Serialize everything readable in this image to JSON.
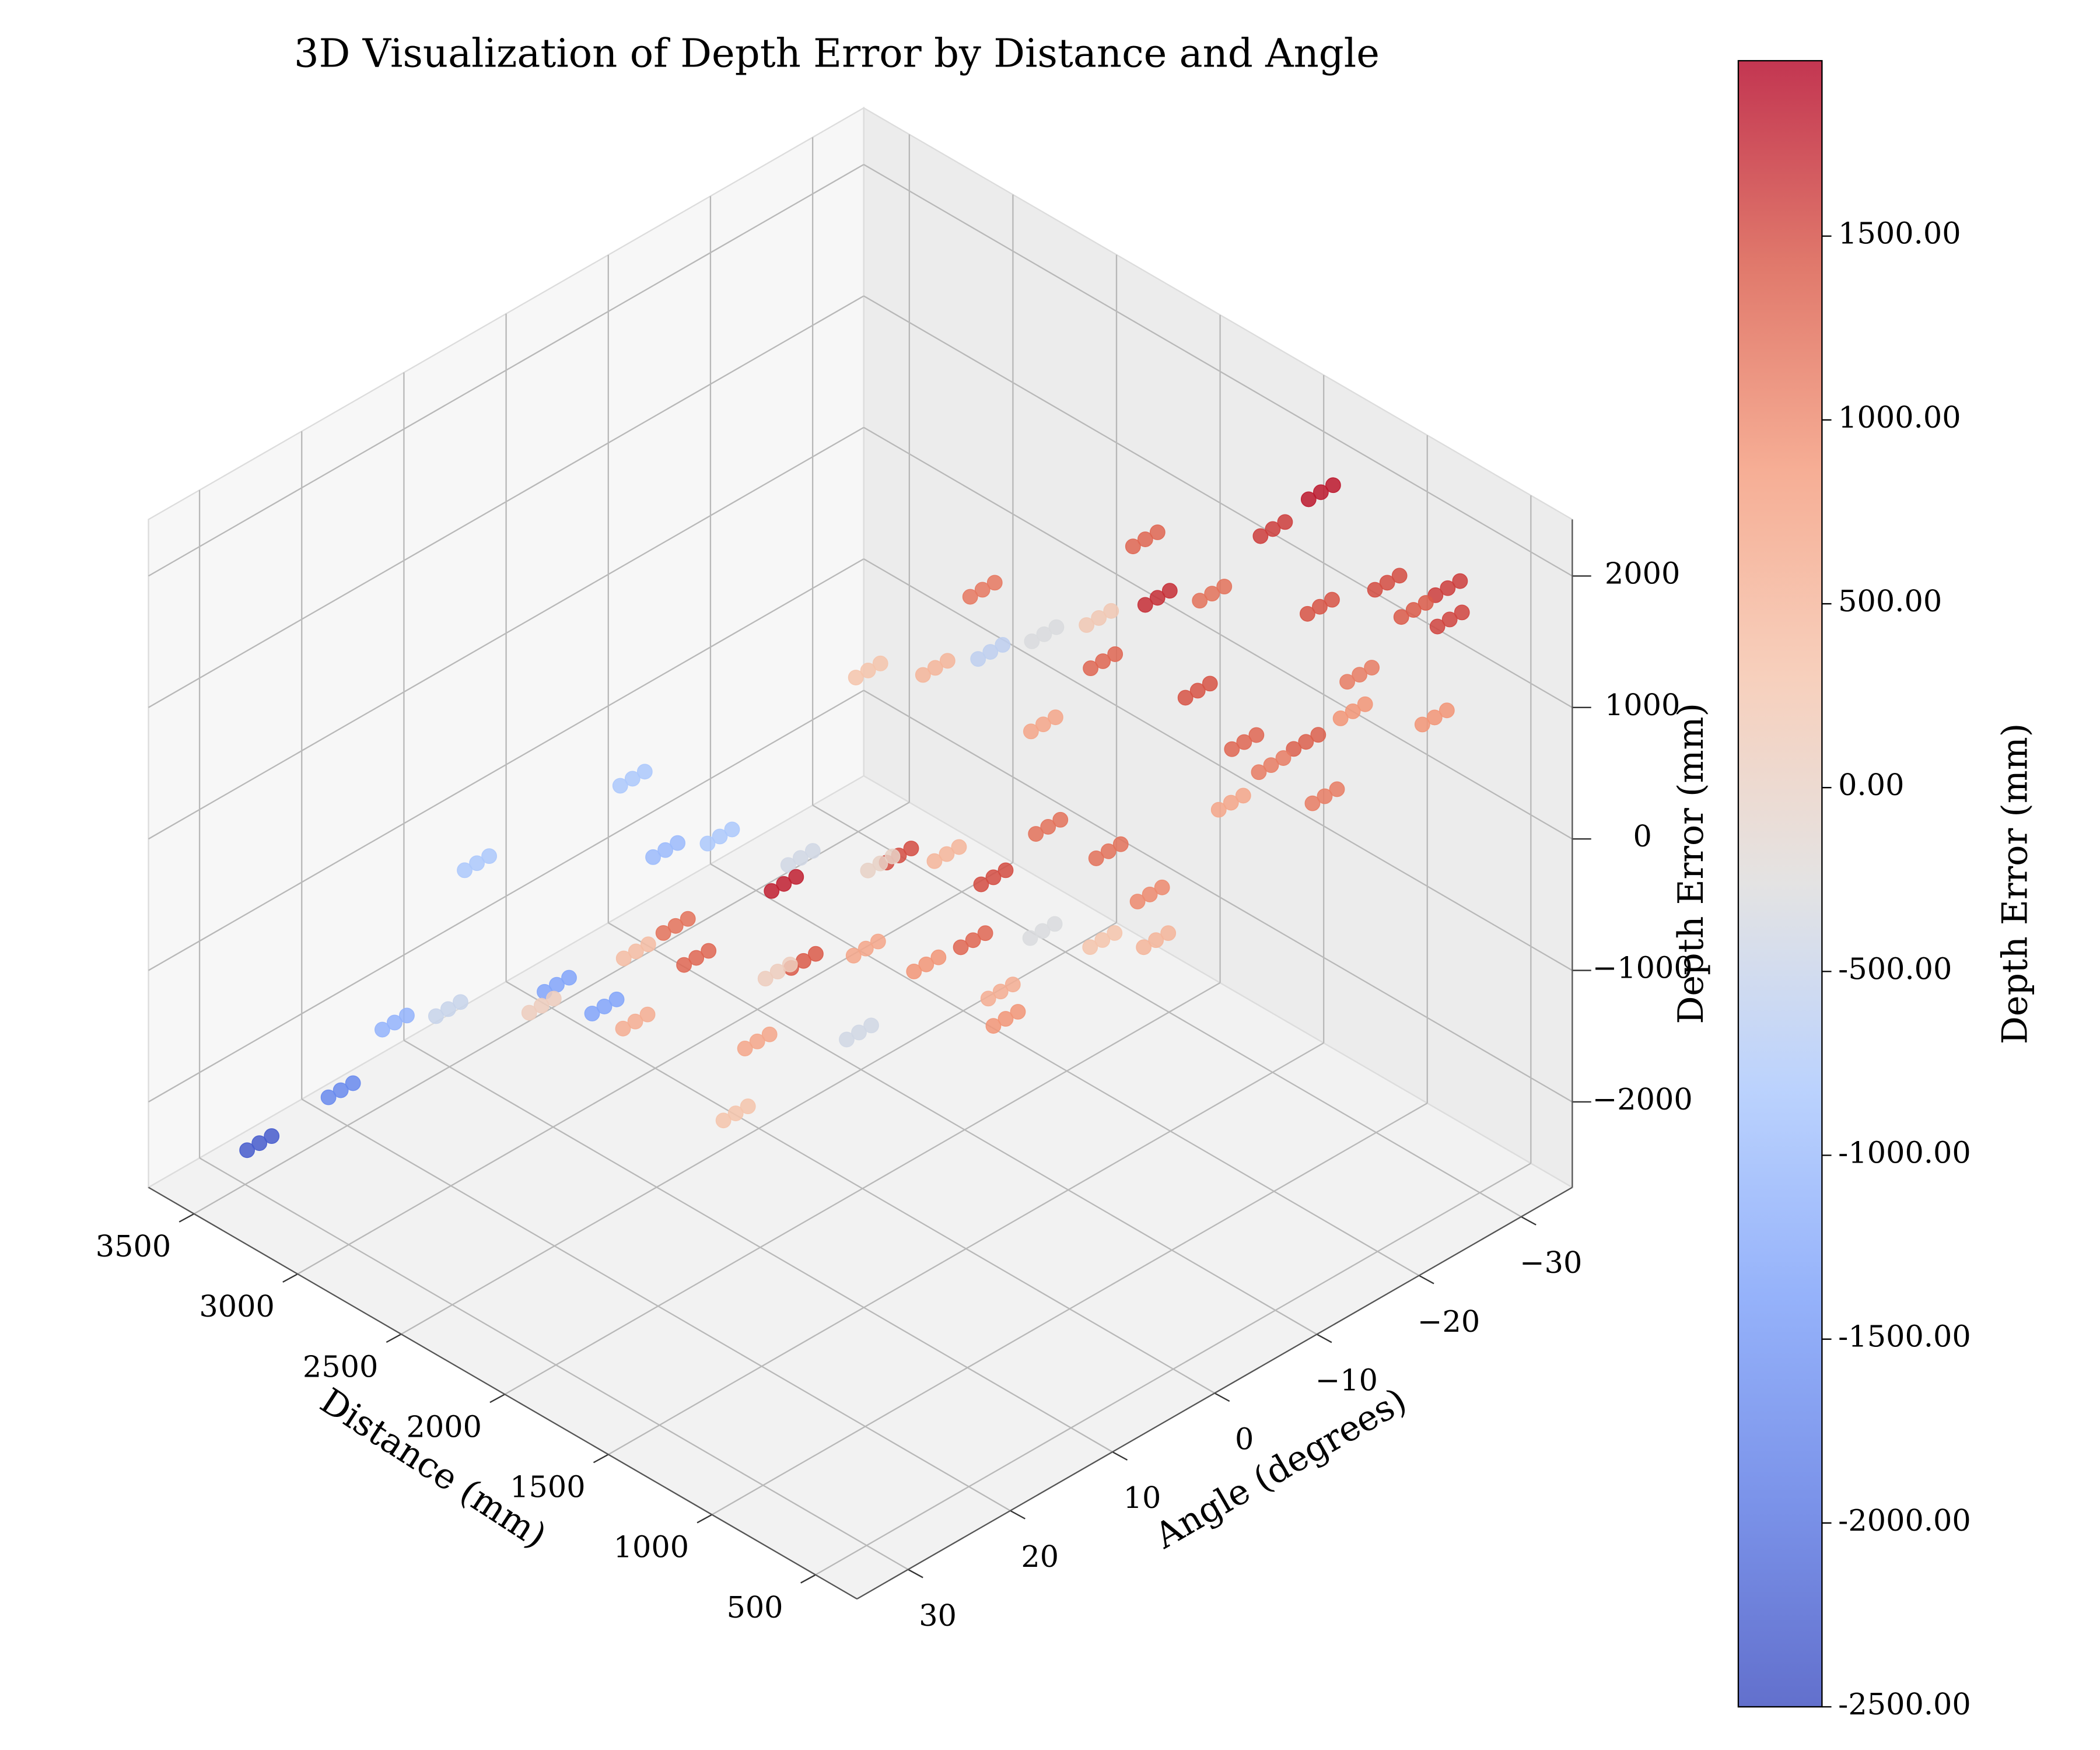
{
  "chart_data": {
    "type": "scatter3d",
    "title": "3D Visualization of Depth Error by Distance and Angle",
    "xlabel": "Distance (mm)",
    "ylabel": "Angle (degrees)",
    "zlabel": "Depth Error (mm)",
    "colorbar_label": "Depth Error (mm)",
    "colormap": "coolwarm",
    "grid": true,
    "xlim": [
      300,
      3720
    ],
    "ylim": [
      -35,
      35
    ],
    "zlim": [
      -2650,
      2430
    ],
    "clim": [
      -2500,
      1977
    ],
    "xticks": [
      500,
      1000,
      1500,
      2000,
      2500,
      3000,
      3500
    ],
    "yticks": [
      {
        "value": -30,
        "label": "−30"
      },
      {
        "value": -20,
        "label": "−20"
      },
      {
        "value": -10,
        "label": "−10"
      },
      0,
      10,
      20,
      30
    ],
    "zticks": [
      {
        "value": -2000,
        "label": "−2000"
      },
      {
        "value": -1000,
        "label": "−1000"
      },
      0,
      1000,
      2000
    ],
    "colorbar_ticks": [
      {
        "value": -2500,
        "label": "-2500.00"
      },
      {
        "value": -2000,
        "label": "-2000.00"
      },
      {
        "value": -1500,
        "label": "-1500.00"
      },
      {
        "value": -1000,
        "label": "-1000.00"
      },
      {
        "value": -500,
        "label": "-500.00"
      },
      {
        "value": 0,
        "label": "0.00"
      },
      {
        "value": 500,
        "label": "500.00"
      },
      {
        "value": 1000,
        "label": "1000.00"
      },
      {
        "value": 1500,
        "label": "1500.00"
      }
    ],
    "x": [
      1336,
      1336,
      1336,
      1435,
      1435,
      1435,
      1863,
      1863,
      1863,
      2126,
      2126,
      2126,
      1370,
      1370,
      1370,
      1531,
      1531,
      1531,
      991,
      991,
      991,
      768,
      768,
      768,
      869,
      869,
      869,
      1080,
      1080,
      1080,
      660,
      660,
      660,
      2588,
      2588,
      2588,
      2808,
      2808,
      2808,
      2250,
      2250,
      2250,
      2530,
      2530,
      2530,
      2270,
      2270,
      2270,
      1456,
      1456,
      1456,
      1023,
      1023,
      1023,
      893,
      893,
      893,
      866,
      866,
      866,
      644,
      644,
      644,
      1665,
      1665,
      1665,
      779,
      779,
      779,
      604,
      604,
      604,
      728,
      728,
      728,
      887,
      887,
      887,
      469,
      469,
      469,
      3248,
      3248,
      3248,
      3269,
      3269,
      3269,
      2981,
      2981,
      2981,
      2797,
      2797,
      2797,
      2294,
      2294,
      2294,
      1025,
      1025,
      1025,
      1465,
      1465,
      1465,
      1018,
      1018,
      1018,
      707,
      707,
      707,
      951,
      951,
      951,
      704,
      704,
      704,
      534,
      534,
      534,
      1432,
      1432,
      1432,
      1194,
      1194,
      1194,
      1860,
      1860,
      1860,
      2844,
      2844,
      2844,
      2564,
      2564,
      2564,
      2966,
      2966,
      2966,
      2639,
      2639,
      2639,
      1459,
      1459,
      1459,
      2025,
      2025,
      2025,
      3142,
      3142,
      3142,
      3446,
      3446,
      3446,
      1028,
      1028,
      1028,
      999,
      999,
      999,
      1425,
      1425,
      1425,
      834,
      834,
      834,
      603,
      603,
      603,
      707,
      707,
      707,
      416,
      416,
      416,
      842,
      842,
      842,
      603,
      603,
      603,
      869,
      869,
      869,
      1155,
      1155,
      1155,
      1353,
      1353,
      1353,
      1600,
      1600,
      1600,
      1860,
      1860,
      1860
    ],
    "y": [
      -32.6,
      -31.4,
      -30.2,
      -29.9,
      -28.7,
      -27.5,
      -26.1,
      -24.9,
      -23.7,
      -15.5,
      -14.3,
      -13.1,
      -17.3,
      -16.1,
      -14.9,
      -25.9,
      -24.7,
      -23.5,
      -32.1,
      -30.9,
      -29.7,
      -33.5,
      -32.3,
      -31.1,
      -32.2,
      -31.0,
      -29.8,
      -27.3,
      -26.1,
      -24.9,
      -31.5,
      -30.3,
      -29.1,
      -30.9,
      -29.7,
      -28.5,
      -30.1,
      -28.9,
      -27.7,
      -29.4,
      -28.2,
      -27.0,
      -12.5,
      -11.3,
      -10.1,
      -13.8,
      -12.6,
      -11.4,
      -13.7,
      -12.5,
      -11.3,
      -14.2,
      -13.0,
      -11.8,
      -27.4,
      -26.2,
      -25.0,
      -26.2,
      -25.0,
      -23.8,
      -29.7,
      -28.5,
      -27.3,
      -12.1,
      -10.9,
      -9.7,
      -13.8,
      -12.6,
      -11.4,
      -16.3,
      -15.1,
      -13.9,
      -15.4,
      -14.2,
      -13.0,
      -14.7,
      -13.5,
      -12.3,
      -15.4,
      -14.2,
      -13.0,
      -4.0,
      -2.8,
      -1.6,
      10.8,
      12.0,
      13.2,
      -1.8,
      -0.6,
      0.6,
      -3.4,
      -2.2,
      -1.0,
      -1.1,
      0.1,
      1.3,
      15.0,
      16.2,
      17.4,
      1.4,
      2.6,
      3.8,
      26.4,
      27.6,
      28.8,
      12.2,
      13.4,
      14.6,
      1.9,
      3.1,
      4.3,
      1.0,
      2.2,
      3.4,
      0.4,
      1.6,
      2.8,
      28.6,
      29.8,
      31.0,
      31.4,
      32.6,
      33.8,
      23.8,
      25.0,
      26.2,
      11.6,
      12.8,
      14.0,
      27.9,
      29.1,
      30.3,
      25.0,
      26.2,
      27.4,
      11.1,
      12.3,
      13.5,
      32.0,
      33.2,
      34.4,
      29.7,
      30.9,
      32.1,
      26.7,
      27.9,
      29.1,
      28.5,
      29.7,
      30.9,
      28.8,
      30.0,
      31.2,
      31.5,
      32.7,
      33.9,
      10.8,
      12.0,
      13.2,
      16.2,
      17.4,
      18.6,
      16.3,
      17.5,
      18.7,
      11.5,
      12.7,
      13.9,
      16.9,
      18.1,
      19.3,
      -1.2,
      0,
      1.2,
      -1.6,
      -0.4,
      0.8,
      27.5,
      28.7,
      29.9,
      15.6,
      16.8,
      18.0,
      -5.7,
      -4.5,
      -3.3,
      15.2,
      16.4,
      17.6,
      -0.1,
      1.1,
      2.3
    ],
    "z": [
      1850,
      1850,
      1850,
      1600,
      1600,
      1600,
      1300,
      1300,
      1300,
      1150,
      1150,
      1150,
      1700,
      1700,
      1700,
      1200,
      1200,
      1200,
      1500,
      1500,
      1500,
      1600,
      1600,
      1600,
      1400,
      1400,
      1400,
      1450,
      1450,
      1450,
      1550,
      1550,
      1550,
      -300,
      -300,
      -300,
      -600,
      -600,
      -600,
      200,
      200,
      200,
      300,
      300,
      300,
      500,
      500,
      500,
      1300,
      1300,
      1300,
      1450,
      1450,
      1450,
      1100,
      1100,
      1100,
      900,
      900,
      900,
      900,
      900,
      900,
      700,
      700,
      700,
      1300,
      1300,
      1300,
      1350,
      1350,
      1350,
      1100,
      1100,
      1100,
      700,
      700,
      700,
      1100,
      1100,
      1100,
      -800,
      -800,
      -800,
      -800,
      -800,
      -800,
      -1000,
      -1000,
      -1000,
      -800,
      -800,
      -800,
      -400,
      -400,
      -400,
      1500,
      1500,
      1500,
      500,
      500,
      500,
      1800,
      1800,
      1800,
      1500,
      1500,
      1500,
      1200,
      1200,
      1200,
      1200,
      1200,
      1200,
      1000,
      1000,
      1000,
      1200,
      1200,
      1200,
      1300,
      1300,
      1300,
      400,
      400,
      400,
      -1300,
      -1300,
      -1300,
      -500,
      -500,
      -500,
      -1100,
      -1100,
      -1100,
      -1300,
      -1300,
      -1300,
      600,
      600,
      600,
      100,
      100,
      100,
      -1700,
      -1700,
      -1700,
      -2300,
      -2300,
      -2300,
      700,
      700,
      700,
      300,
      300,
      300,
      -400,
      -400,
      -400,
      900,
      900,
      900,
      1300,
      1300,
      1300,
      600,
      600,
      600,
      900,
      900,
      900,
      300,
      300,
      300,
      500,
      500,
      500,
      1400,
      1400,
      1400,
      700,
      700,
      700,
      -300,
      -300,
      -300,
      100,
      100,
      100,
      0,
      0,
      0
    ]
  }
}
